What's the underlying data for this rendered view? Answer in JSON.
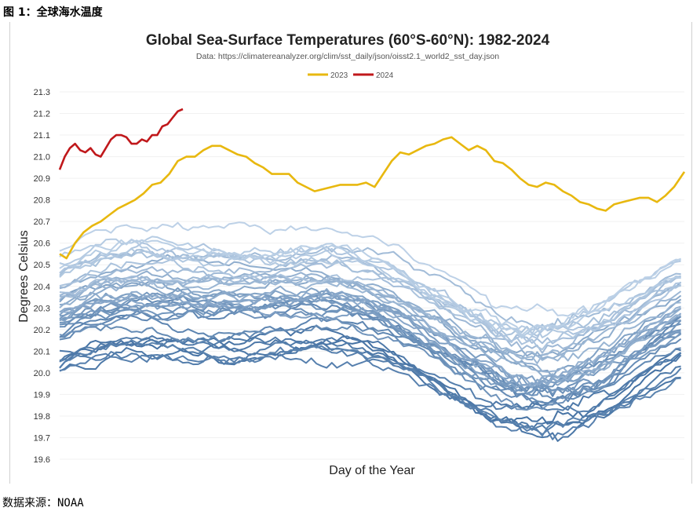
{
  "figure_label": "图 1：全球海水温度",
  "source_label": "数据来源：NOAA",
  "chart_data": {
    "type": "line",
    "title": "Global Sea-Surface Temperatures (60°S-60°N): 1982-2024",
    "subtitle": "Data: https://climatereanalyzer.org/clim/sst_daily/json/oisst2.1_world2_sst_day.json",
    "xlabel": "Day of the Year",
    "ylabel": "Degrees Celsius",
    "ylim": [
      19.6,
      21.3
    ],
    "yticks": [
      "21.3",
      "21.2",
      "21.1",
      "21.0",
      "20.9",
      "20.8",
      "20.7",
      "20.6",
      "20.5",
      "20.4",
      "20.3",
      "20.2",
      "20.1",
      "20.0",
      "19.9",
      "19.8",
      "19.7",
      "19.6"
    ],
    "xlim": [
      1,
      366
    ],
    "legend": [
      {
        "name": "2023",
        "color": "#e8b80f"
      },
      {
        "name": "2024",
        "color": "#c0181b"
      }
    ],
    "series": [
      {
        "name": "2023",
        "color": "#e8b80f",
        "x": [
          1,
          5,
          10,
          15,
          20,
          25,
          30,
          35,
          40,
          45,
          50,
          55,
          60,
          65,
          70,
          75,
          80,
          85,
          90,
          95,
          100,
          105,
          110,
          115,
          120,
          125,
          130,
          135,
          140,
          145,
          150,
          155,
          160,
          165,
          170,
          175,
          180,
          185,
          190,
          195,
          200,
          205,
          210,
          215,
          220,
          225,
          230,
          235,
          240,
          245,
          250,
          255,
          260,
          265,
          270,
          275,
          280,
          285,
          290,
          295,
          300,
          305,
          310,
          315,
          320,
          325,
          330,
          335,
          340,
          345,
          350,
          355,
          360,
          366
        ],
        "y": [
          20.55,
          20.53,
          20.6,
          20.65,
          20.68,
          20.7,
          20.73,
          20.76,
          20.78,
          20.8,
          20.83,
          20.87,
          20.88,
          20.92,
          20.98,
          21.0,
          21.0,
          21.03,
          21.05,
          21.05,
          21.03,
          21.01,
          21.0,
          20.97,
          20.95,
          20.92,
          20.92,
          20.92,
          20.88,
          20.86,
          20.84,
          20.85,
          20.86,
          20.87,
          20.87,
          20.87,
          20.88,
          20.86,
          20.92,
          20.98,
          21.02,
          21.01,
          21.03,
          21.05,
          21.06,
          21.08,
          21.09,
          21.06,
          21.03,
          21.05,
          21.03,
          20.98,
          20.97,
          20.94,
          20.9,
          20.87,
          20.86,
          20.88,
          20.87,
          20.84,
          20.82,
          20.79,
          20.78,
          20.76,
          20.75,
          20.78,
          20.79,
          20.8,
          20.81,
          20.81,
          20.79,
          20.82,
          20.86,
          20.93
        ]
      },
      {
        "name": "2024",
        "color": "#c0181b",
        "x": [
          1,
          4,
          7,
          10,
          13,
          16,
          19,
          22,
          25,
          28,
          31,
          34,
          37,
          40,
          43,
          46,
          49,
          52,
          55,
          58,
          61,
          64,
          67,
          70,
          73
        ],
        "y": [
          20.94,
          21.0,
          21.04,
          21.06,
          21.03,
          21.02,
          21.04,
          21.01,
          21.0,
          21.04,
          21.08,
          21.1,
          21.1,
          21.09,
          21.06,
          21.06,
          21.08,
          21.07,
          21.1,
          21.1,
          21.14,
          21.15,
          21.18,
          21.21,
          21.22
        ]
      }
    ],
    "background_series_count": 41,
    "background_series_note": "Years 1982-2022 shown as blue lines, darker for earlier years"
  }
}
